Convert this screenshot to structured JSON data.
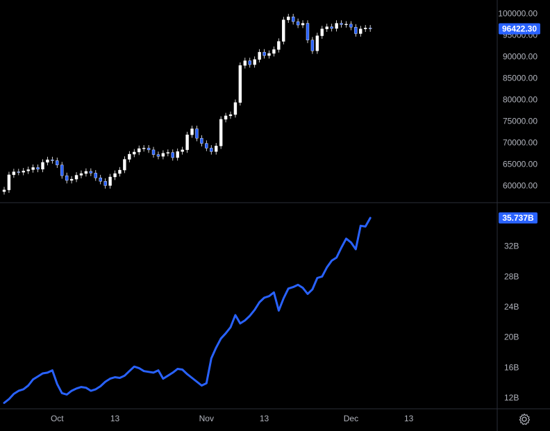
{
  "chart_data": [
    {
      "type": "candlestick",
      "title": "",
      "panel": "price",
      "x_range": [
        "2024-09-20",
        "2024-12-05"
      ],
      "ylim": [
        57000,
        101500
      ],
      "y_ticks": [
        "100000.00",
        "95000.00",
        "90000.00",
        "85000.00",
        "80000.00",
        "75000.00",
        "70000.00",
        "65000.00",
        "60000.00"
      ],
      "y_tick_values": [
        100000,
        95000,
        90000,
        85000,
        80000,
        75000,
        70000,
        65000,
        60000
      ],
      "last_value_label": "96422.30",
      "last_value": 96422.3,
      "color_up": "#ffffff",
      "color_down": "#2962ff",
      "series": [
        {
          "x": [
            0,
            1,
            2,
            3,
            4,
            5,
            6,
            7,
            8,
            9,
            10,
            11,
            12,
            13,
            14,
            15,
            16,
            17,
            18,
            19,
            20,
            21,
            22,
            23,
            24,
            25,
            26,
            27,
            28,
            29,
            30,
            31,
            32,
            33,
            34,
            35,
            36,
            37,
            38,
            39,
            40,
            41,
            42,
            43,
            44,
            45,
            46,
            47,
            48,
            49,
            50,
            51,
            52,
            53,
            54,
            55,
            56,
            57,
            58,
            59,
            60,
            61,
            62,
            63,
            64,
            65,
            66,
            67,
            68,
            69,
            70,
            71,
            72,
            73,
            74,
            75,
            76
          ],
          "close": [
            59000,
            62500,
            63200,
            63100,
            63400,
            63700,
            64200,
            63800,
            65400,
            66000,
            65800,
            64800,
            62300,
            61200,
            61500,
            62400,
            62800,
            63300,
            62900,
            61800,
            61000,
            60000,
            62000,
            62800,
            63600,
            66100,
            67300,
            67800,
            68600,
            68700,
            68300,
            67200,
            66800,
            67500,
            67700,
            66500,
            67900,
            68300,
            71800,
            73200,
            71000,
            69800,
            68700,
            67900,
            69200,
            75400,
            76200,
            76500,
            79300,
            87900,
            89000,
            88100,
            89300,
            91000,
            90200,
            90700,
            91600,
            93500,
            98500,
            99200,
            98100,
            97300,
            97700,
            93800,
            91300,
            94800,
            96400,
            96900,
            96500,
            97700,
            97400,
            97500,
            96800,
            95300,
            96400,
            96600,
            96422.3
          ]
        }
      ]
    },
    {
      "type": "line",
      "panel": "indicator",
      "title": "",
      "x_range": [
        "2024-09-20",
        "2024-12-05"
      ],
      "ylim": [
        10.8,
        37.2
      ],
      "y_ticks": [
        "32B",
        "28B",
        "24B",
        "20B",
        "16B",
        "12B"
      ],
      "y_tick_values": [
        32,
        28,
        24,
        20,
        16,
        12
      ],
      "last_value_label": "35.737B",
      "last_value": 35.737,
      "color": "#2962ff",
      "series": [
        {
          "x": [
            0,
            1,
            2,
            3,
            4,
            5,
            6,
            7,
            8,
            9,
            10,
            11,
            12,
            13,
            14,
            15,
            16,
            17,
            18,
            19,
            20,
            21,
            22,
            23,
            24,
            25,
            26,
            27,
            28,
            29,
            30,
            31,
            32,
            33,
            34,
            35,
            36,
            37,
            38,
            39,
            40,
            41,
            42,
            43,
            44,
            45,
            46,
            47,
            48,
            49,
            50,
            51,
            52,
            53,
            54,
            55,
            56,
            57,
            58,
            59,
            60,
            61,
            62,
            63,
            64,
            65,
            66,
            67,
            68,
            69,
            70,
            71,
            72,
            73,
            74,
            75,
            76
          ],
          "values": [
            11.3,
            11.8,
            12.5,
            12.9,
            13.1,
            13.6,
            14.4,
            14.8,
            15.2,
            15.3,
            15.6,
            13.8,
            12.6,
            12.4,
            12.9,
            13.2,
            13.4,
            13.3,
            12.9,
            13.1,
            13.5,
            14.1,
            14.5,
            14.7,
            14.6,
            14.9,
            15.5,
            16.1,
            15.9,
            15.5,
            15.4,
            15.3,
            15.6,
            14.5,
            14.9,
            15.3,
            15.8,
            15.7,
            15.1,
            14.6,
            14.1,
            13.6,
            13.9,
            17.2,
            18.6,
            19.8,
            20.5,
            21.3,
            22.9,
            21.8,
            22.2,
            22.8,
            23.6,
            24.6,
            25.2,
            25.4,
            25.9,
            23.5,
            25.1,
            26.4,
            26.6,
            26.9,
            26.5,
            25.7,
            26.3,
            27.8,
            28.0,
            29.2,
            30.1,
            30.5,
            31.8,
            33.0,
            32.5,
            31.6,
            34.7,
            34.6,
            35.737
          ]
        }
      ]
    }
  ],
  "x_axis": {
    "ticks": [
      {
        "label": "Oct",
        "day": 11
      },
      {
        "label": "13",
        "day": 23
      },
      {
        "label": "Nov",
        "day": 42
      },
      {
        "label": "13",
        "day": 54
      },
      {
        "label": "Dec",
        "day": 72
      },
      {
        "label": "13",
        "day": 84
      }
    ],
    "day_range": [
      0,
      96
    ]
  },
  "ui": {
    "settings_icon": "gear-icon"
  }
}
